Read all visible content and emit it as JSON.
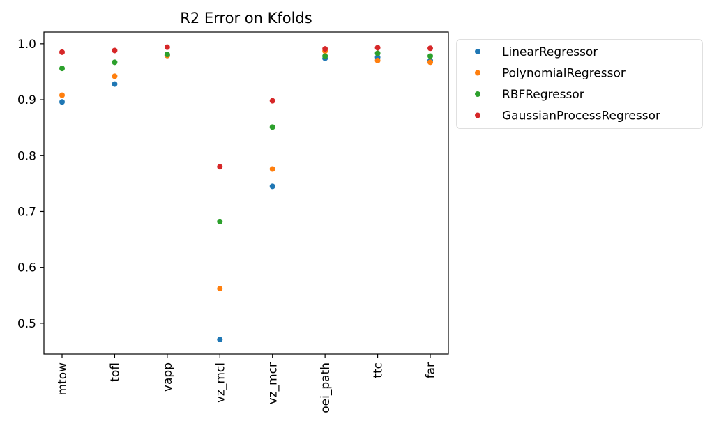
{
  "chart_data": {
    "type": "scatter",
    "title": "R2 Error on Kfolds",
    "xlabel": "",
    "ylabel": "",
    "categories": [
      "mtow",
      "tofl",
      "vapp",
      "vz_mcl",
      "vz_mcr",
      "oei_path",
      "ttc",
      "far"
    ],
    "ylim": [
      0.445,
      1.021
    ],
    "yticks": [
      0.5,
      0.6,
      0.7,
      0.8,
      0.9,
      1.0
    ],
    "ytick_labels": [
      "0.5",
      "0.6",
      "0.7",
      "0.8",
      "0.9",
      "1.0"
    ],
    "grid": false,
    "legend_position": "outside-right-top",
    "series": [
      {
        "name": "LinearRegressor",
        "color": "#1f77b4",
        "values": [
          0.896,
          0.928,
          0.979,
          0.471,
          0.745,
          0.974,
          0.976,
          0.97
        ]
      },
      {
        "name": "PolynomialRegressor",
        "color": "#ff7f0e",
        "values": [
          0.908,
          0.942,
          0.979,
          0.562,
          0.776,
          0.987,
          0.97,
          0.967
        ]
      },
      {
        "name": "RBFRegressor",
        "color": "#2ca02c",
        "values": [
          0.956,
          0.967,
          0.981,
          0.682,
          0.851,
          0.978,
          0.983,
          0.978
        ]
      },
      {
        "name": "GaussianProcessRegressor",
        "color": "#d62728",
        "values": [
          0.985,
          0.988,
          0.994,
          0.78,
          0.898,
          0.991,
          0.993,
          0.992
        ]
      }
    ]
  }
}
